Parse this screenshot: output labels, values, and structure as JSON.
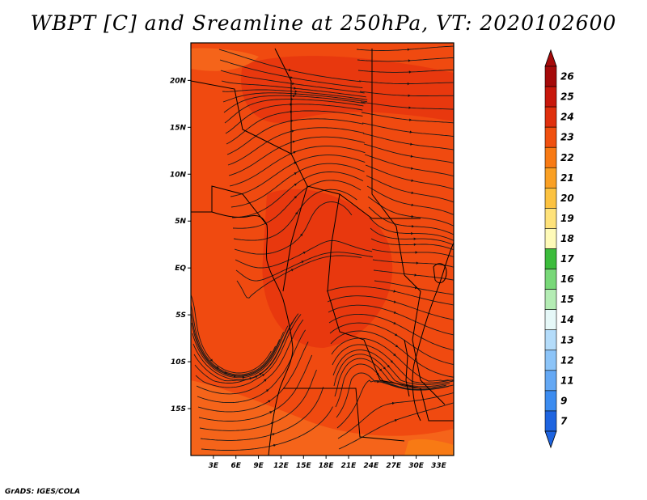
{
  "title": "WBPT [C] and Sreamline at 250hPa, VT: 2020102600",
  "credit": "GrADS: IGES/COLA",
  "colors": {
    "field_main": "#f04a10",
    "field_warm": "#e8380e",
    "field_light": "#f5641a",
    "coast": "#000000",
    "stream": "#1a1a1a"
  },
  "map": {
    "lon_range": [
      0,
      35
    ],
    "lat_range": [
      -20,
      24
    ],
    "lat_ticks": [
      {
        "value": 20,
        "label": "20N"
      },
      {
        "value": 15,
        "label": "15N"
      },
      {
        "value": 10,
        "label": "10N"
      },
      {
        "value": 5,
        "label": "5N"
      },
      {
        "value": 0,
        "label": "EQ"
      },
      {
        "value": -5,
        "label": "5S"
      },
      {
        "value": -10,
        "label": "10S"
      },
      {
        "value": -15,
        "label": "15S"
      }
    ],
    "lon_ticks": [
      {
        "value": 3,
        "label": "3E"
      },
      {
        "value": 6,
        "label": "6E"
      },
      {
        "value": 9,
        "label": "9E"
      },
      {
        "value": 12,
        "label": "12E"
      },
      {
        "value": 15,
        "label": "15E"
      },
      {
        "value": 18,
        "label": "18E"
      },
      {
        "value": 21,
        "label": "21E"
      },
      {
        "value": 24,
        "label": "24E"
      },
      {
        "value": 27,
        "label": "27E"
      },
      {
        "value": 30,
        "label": "30E"
      },
      {
        "value": 33,
        "label": "33E"
      }
    ]
  },
  "colorbar": {
    "levels": [
      {
        "label": "26",
        "color": "#a50a0a"
      },
      {
        "label": "25",
        "color": "#c8180c"
      },
      {
        "label": "24",
        "color": "#e0300e"
      },
      {
        "label": "23",
        "color": "#f05010"
      },
      {
        "label": "22",
        "color": "#f87a14"
      },
      {
        "label": "21",
        "color": "#faa024"
      },
      {
        "label": "20",
        "color": "#fcc240"
      },
      {
        "label": "19",
        "color": "#fee27a"
      },
      {
        "label": "18",
        "color": "#fefab8"
      },
      {
        "label": "17",
        "color": "#3cbc3c"
      },
      {
        "label": "16",
        "color": "#78d878"
      },
      {
        "label": "15",
        "color": "#b4ecb4"
      },
      {
        "label": "14",
        "color": "#e6f8f8"
      },
      {
        "label": "13",
        "color": "#b4dcfa"
      },
      {
        "label": "12",
        "color": "#8cc4f8"
      },
      {
        "label": "11",
        "color": "#64a8f4"
      },
      {
        "label": "9",
        "color": "#3c8cf0"
      },
      {
        "label": "7",
        "color": "#1e64e0"
      }
    ],
    "top_color": "#a50a0a",
    "bottom_color": "#1e64e0"
  }
}
